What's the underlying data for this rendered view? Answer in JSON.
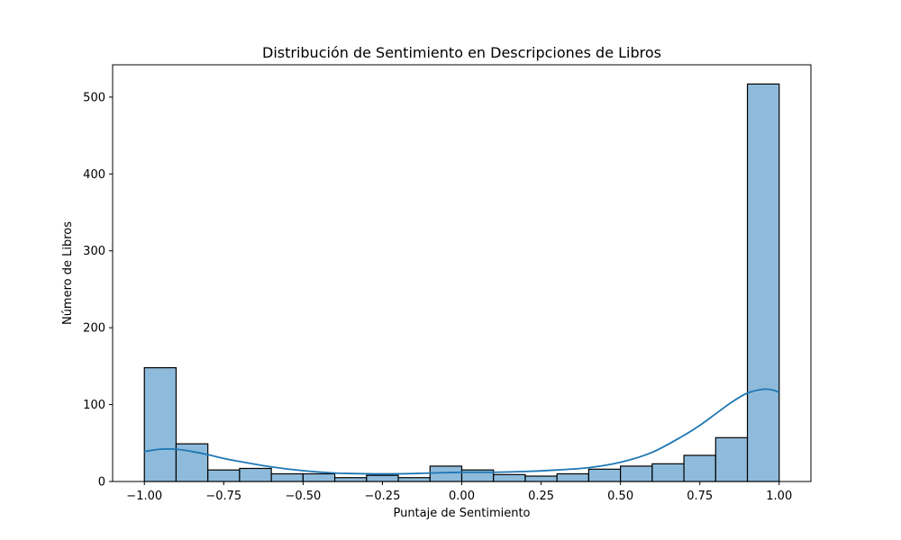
{
  "chart_data": {
    "type": "bar",
    "subtype": "histogram-with-kde",
    "title": "Distribución de Sentimiento en Descripciones de Libros",
    "xlabel": "Puntaje de Sentimiento",
    "ylabel": "Número de Libros",
    "xlim": [
      -1.1,
      1.1
    ],
    "ylim": [
      0,
      542
    ],
    "grid": false,
    "xticks": [
      -1.0,
      -0.75,
      -0.5,
      -0.25,
      0.0,
      0.25,
      0.5,
      0.75,
      1.0
    ],
    "xtick_labels": [
      "−1.00",
      "−0.75",
      "−0.50",
      "−0.25",
      "0.00",
      "0.25",
      "0.50",
      "0.75",
      "1.00"
    ],
    "yticks": [
      0,
      100,
      200,
      300,
      400,
      500
    ],
    "ytick_labels": [
      "0",
      "100",
      "200",
      "300",
      "400",
      "500"
    ],
    "bins": [
      {
        "x0": -1.0,
        "x1": -0.9,
        "count": 148
      },
      {
        "x0": -0.9,
        "x1": -0.8,
        "count": 49
      },
      {
        "x0": -0.8,
        "x1": -0.7,
        "count": 15
      },
      {
        "x0": -0.7,
        "x1": -0.6,
        "count": 17
      },
      {
        "x0": -0.6,
        "x1": -0.5,
        "count": 10
      },
      {
        "x0": -0.5,
        "x1": -0.4,
        "count": 10
      },
      {
        "x0": -0.4,
        "x1": -0.3,
        "count": 5
      },
      {
        "x0": -0.3,
        "x1": -0.2,
        "count": 8
      },
      {
        "x0": -0.2,
        "x1": -0.1,
        "count": 5
      },
      {
        "x0": -0.1,
        "x1": 0.0,
        "count": 20
      },
      {
        "x0": 0.0,
        "x1": 0.1,
        "count": 15
      },
      {
        "x0": 0.1,
        "x1": 0.2,
        "count": 9
      },
      {
        "x0": 0.2,
        "x1": 0.3,
        "count": 7
      },
      {
        "x0": 0.3,
        "x1": 0.4,
        "count": 10
      },
      {
        "x0": 0.4,
        "x1": 0.5,
        "count": 16
      },
      {
        "x0": 0.5,
        "x1": 0.6,
        "count": 20
      },
      {
        "x0": 0.6,
        "x1": 0.7,
        "count": 23
      },
      {
        "x0": 0.7,
        "x1": 0.8,
        "count": 34
      },
      {
        "x0": 0.8,
        "x1": 0.9,
        "count": 57
      },
      {
        "x0": 0.9,
        "x1": 1.0,
        "count": 517
      }
    ],
    "kde": {
      "x": [
        -1.0,
        -0.95,
        -0.9,
        -0.85,
        -0.8,
        -0.75,
        -0.7,
        -0.6,
        -0.5,
        -0.4,
        -0.3,
        -0.2,
        -0.1,
        0.0,
        0.1,
        0.2,
        0.3,
        0.4,
        0.5,
        0.6,
        0.7,
        0.75,
        0.8,
        0.85,
        0.9,
        0.95,
        0.98,
        1.0
      ],
      "y": [
        39,
        42,
        42,
        39,
        35,
        30,
        26,
        19,
        14,
        11,
        10,
        10,
        11,
        12,
        12,
        13,
        15,
        18,
        25,
        38,
        60,
        73,
        88,
        103,
        115,
        120,
        119,
        116
      ]
    },
    "colors": {
      "bar_fill": "#8ebbdb",
      "bar_edge": "#000000",
      "kde_line": "#1f77b4",
      "axes": "#000000"
    }
  }
}
